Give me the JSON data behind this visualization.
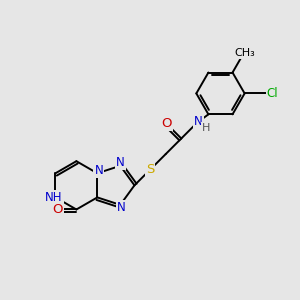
{
  "background_color": "#e6e6e6",
  "atom_colors": {
    "C": "#000000",
    "N": "#0000cc",
    "O": "#cc0000",
    "S": "#ccaa00",
    "Cl": "#00aa00",
    "H": "#555555"
  },
  "bond_color": "#000000",
  "bond_width": 1.4,
  "font_size": 8.5,
  "fig_size": [
    3.0,
    3.0
  ],
  "dpi": 100
}
